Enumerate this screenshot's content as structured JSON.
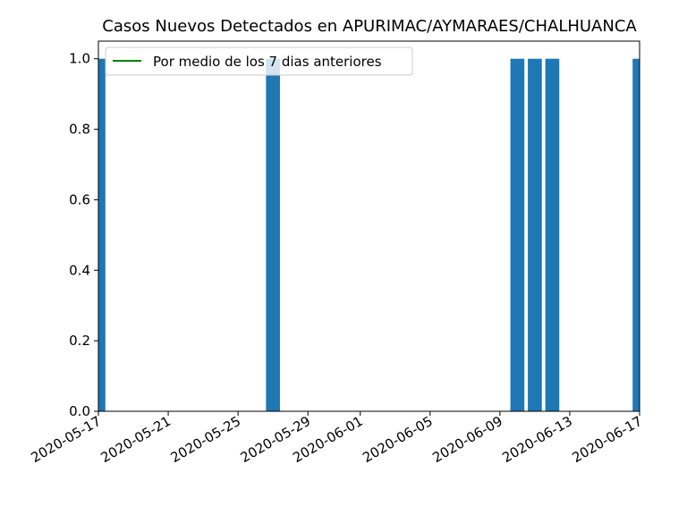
{
  "chart_data": {
    "type": "bar",
    "title": "Casos Nuevos Detectados en APURIMAC/AYMARAES/CHALHUANCA",
    "xlabel": "",
    "ylabel": "",
    "x_range": [
      "2020-05-17",
      "2020-06-17"
    ],
    "ylim": [
      0,
      1.05
    ],
    "y_ticks": [
      "0.0",
      "0.2",
      "0.4",
      "0.6",
      "0.8",
      "1.0"
    ],
    "x_ticks": [
      "2020-05-17",
      "2020-05-21",
      "2020-05-25",
      "2020-05-29",
      "2020-06-01",
      "2020-06-05",
      "2020-06-09",
      "2020-06-13",
      "2020-06-17"
    ],
    "bars": [
      {
        "date": "2020-05-17",
        "value": 1
      },
      {
        "date": "2020-05-27",
        "value": 1
      },
      {
        "date": "2020-06-10",
        "value": 1
      },
      {
        "date": "2020-06-11",
        "value": 1
      },
      {
        "date": "2020-06-12",
        "value": 1
      },
      {
        "date": "2020-06-17",
        "value": 1
      }
    ],
    "series": [
      {
        "name": "Por medio de los 7 dias anteriores",
        "values": []
      }
    ],
    "bar_color": "#1f77b4",
    "line_color": "#008000",
    "grid": false,
    "legend_position": "top-left"
  }
}
